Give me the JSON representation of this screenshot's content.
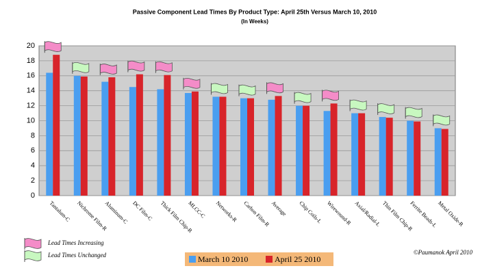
{
  "chart_data": {
    "type": "bar",
    "title": "Passive Component Lead Times By Product Type: April 25th Versus March 10, 2010",
    "subtitle": "(In Weeks)",
    "categories": [
      "Tantalum-C",
      "Nichrome Film-R",
      "Aluminum-C",
      "DC Film-C",
      "Thick Film Chip-R",
      "MLCC-C",
      "Networks-R",
      "Carbon Film-R",
      "Average",
      "Chip Coils-L",
      "Wirewound-R",
      "Axial/Radial-L",
      "Thin Film Chip-R",
      "Ferrite Beads-L",
      "Metal Oxide-R"
    ],
    "series": [
      {
        "name": "March 10 2010",
        "color": "#4a9ef0",
        "values": [
          16.4,
          16.0,
          15.2,
          14.5,
          14.2,
          13.7,
          13.2,
          13.0,
          12.8,
          12.0,
          11.3,
          11.0,
          10.5,
          10.0,
          9.0
        ]
      },
      {
        "name": "April 25 2010",
        "color": "#d8242a",
        "values": [
          18.8,
          15.9,
          15.8,
          16.2,
          16.1,
          13.9,
          13.2,
          13.0,
          13.3,
          12.0,
          12.3,
          11.0,
          10.4,
          9.9,
          8.9
        ]
      }
    ],
    "flag_legend": [
      {
        "label": "Lead Times Increasing",
        "color": "#f48cc8"
      },
      {
        "label": "Lead Times Unchanged",
        "color": "#c8f8c0"
      }
    ],
    "flags": [
      0,
      1,
      0,
      0,
      0,
      0,
      1,
      1,
      0,
      1,
      0,
      1,
      1,
      1,
      1
    ],
    "ylim": [
      0,
      20
    ],
    "yticks": [
      0,
      2,
      4,
      6,
      8,
      10,
      12,
      14,
      16,
      18,
      20
    ],
    "grid": true,
    "legend_background": "#f4b878",
    "copyright": "©Paumanok April 2010"
  }
}
